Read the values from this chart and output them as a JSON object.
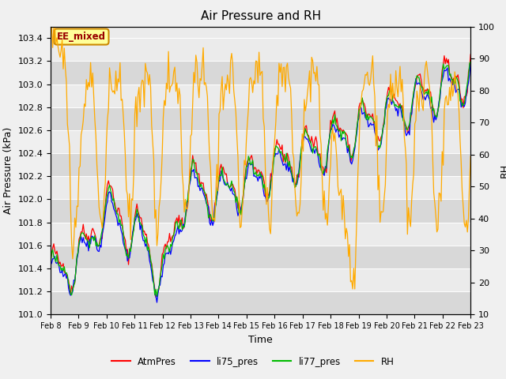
{
  "title": "Air Pressure and RH",
  "xlabel": "Time",
  "ylabel_left": "Air Pressure (kPa)",
  "ylabel_right": "RH",
  "ylim_left": [
    101.0,
    103.5
  ],
  "ylim_right": [
    10,
    100
  ],
  "yticks_left": [
    101.0,
    101.2,
    101.4,
    101.6,
    101.8,
    102.0,
    102.2,
    102.4,
    102.6,
    102.8,
    103.0,
    103.2,
    103.4
  ],
  "yticks_right": [
    10,
    20,
    30,
    40,
    50,
    60,
    70,
    80,
    90,
    100
  ],
  "xtick_labels": [
    "Feb 8",
    "Feb 9",
    "Feb 10",
    "Feb 11",
    "Feb 12",
    "Feb 13",
    "Feb 14",
    "Feb 15",
    "Feb 16",
    "Feb 17",
    "Feb 18",
    "Feb 19",
    "Feb 20",
    "Feb 21",
    "Feb 22",
    "Feb 23"
  ],
  "colors": {
    "AtmPres": "#ff0000",
    "li75_pres": "#0000ff",
    "li77_pres": "#00bb00",
    "RH": "#ffaa00"
  },
  "annotation_text": "EE_mixed",
  "annotation_facecolor": "#ffff99",
  "annotation_edgecolor": "#cc8800",
  "annotation_textcolor": "#990000",
  "bg_dark": "#d8d8d8",
  "bg_light": "#ebebeb",
  "fig_facecolor": "#f0f0f0",
  "grid_color": "#ffffff",
  "title_fontsize": 11,
  "axis_label_fontsize": 9,
  "tick_fontsize": 8,
  "legend_fontsize": 8.5
}
